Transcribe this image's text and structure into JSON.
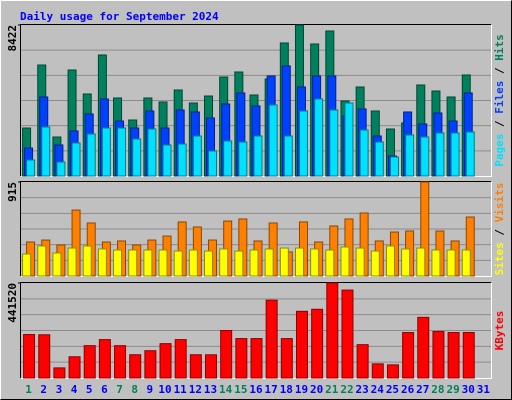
{
  "chart_data": [
    {
      "type": "bar",
      "title": "Daily usage for September 2024",
      "legend_separator": "/",
      "ylim": [
        0,
        8422
      ],
      "yticks": [
        8422
      ],
      "series": [
        {
          "name": "Hits",
          "color": "#00805c",
          "values": [
            2677,
            6191,
            2175,
            5913,
            4574,
            6749,
            4351,
            3124,
            4351,
            4128,
            4797,
            4072,
            4462,
            5522,
            5801,
            4518,
            5411,
            7419,
            8422,
            7363,
            8088,
            4183,
            4964,
            3626,
            2622,
            2956,
            5076,
            4741,
            4407,
            5634,
            null
          ]
        },
        {
          "name": "Files",
          "color": "#0040ff",
          "values": [
            1562,
            4408,
            1730,
            2511,
            3460,
            4297,
            3069,
            2678,
            3627,
            2678,
            3683,
            3571,
            3236,
            4018,
            4631,
            3906,
            5580,
            6138,
            4966,
            5580,
            5580,
            3348,
            3739,
            2232,
            1116,
            3571,
            2902,
            3515,
            3069,
            4631,
            null
          ]
        },
        {
          "name": "Pages",
          "color": "#00e0ff",
          "values": [
            893,
            2734,
            781,
            1841,
            2344,
            2678,
            2678,
            2065,
            2623,
            1730,
            1786,
            2232,
            1395,
            1953,
            1897,
            2232,
            3962,
            2232,
            3627,
            4297,
            3683,
            4073,
            2567,
            1897,
            1060,
            2288,
            2176,
            2399,
            2399,
            2455,
            null
          ]
        }
      ]
    },
    {
      "type": "bar",
      "legend_separator": "/",
      "ylim": [
        0,
        915
      ],
      "yticks": [
        915
      ],
      "series": [
        {
          "name": "Visits",
          "color": "#ff8000",
          "values": [
            331,
            350,
            302,
            642,
            516,
            331,
            341,
            302,
            350,
            389,
            526,
            477,
            350,
            535,
            555,
            341,
            516,
            234,
            526,
            331,
            487,
            555,
            613,
            341,
            428,
            438,
            915,
            438,
            341,
            574,
            null
          ]
        },
        {
          "name": "Sites",
          "color": "#ffff00",
          "values": [
            214,
            292,
            224,
            272,
            292,
            263,
            253,
            253,
            253,
            253,
            243,
            253,
            243,
            263,
            243,
            253,
            263,
            272,
            272,
            263,
            253,
            282,
            272,
            243,
            292,
            263,
            272,
            253,
            253,
            253,
            null
          ]
        }
      ]
    },
    {
      "type": "bar",
      "ylim": [
        0,
        441520
      ],
      "yticks": [
        441520
      ],
      "categories": [
        "1",
        "2",
        "3",
        "4",
        "5",
        "6",
        "7",
        "8",
        "9",
        "10",
        "11",
        "12",
        "13",
        "14",
        "15",
        "16",
        "17",
        "18",
        "19",
        "20",
        "21",
        "22",
        "23",
        "24",
        "25",
        "26",
        "27",
        "28",
        "29",
        "30",
        "31"
      ],
      "category_colors": [
        "#00805c",
        "#0000ff",
        "#0000ff",
        "#0000ff",
        "#0000ff",
        "#0000ff",
        "#00805c",
        "#00805c",
        "#0000ff",
        "#0000ff",
        "#0000ff",
        "#0000ff",
        "#0000ff",
        "#00805c",
        "#00805c",
        "#0000ff",
        "#0000ff",
        "#0000ff",
        "#0000ff",
        "#0000ff",
        "#00805c",
        "#00805c",
        "#0000ff",
        "#0000ff",
        "#0000ff",
        "#0000ff",
        "#0000ff",
        "#00805c",
        "#00805c",
        "#0000ff",
        "#0000ff"
      ],
      "series": [
        {
          "name": "KBytes",
          "color": "#ff0000",
          "values": [
            201970,
            200830,
            46970,
            98640,
            150300,
            178490,
            150310,
            108030,
            126820,
            159700,
            178480,
            108030,
            107820,
            220760,
            183180,
            183180,
            361670,
            183180,
            310000,
            319400,
            441520,
            408640,
            155000,
            65760,
            61060,
            211370,
            281820,
            216060,
            211360,
            211360,
            null
          ]
        }
      ]
    }
  ]
}
